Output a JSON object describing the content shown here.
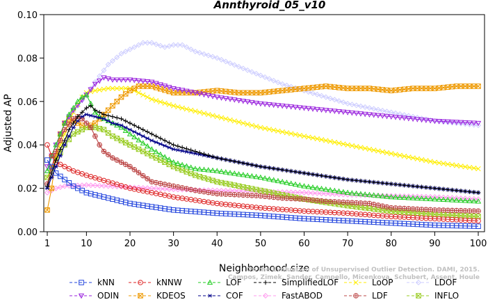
{
  "chart_data": {
    "type": "line",
    "title": "Annthyroid_05_v10",
    "xlabel": "Neighborhood size",
    "ylabel": "Adjusted AP",
    "xlim": [
      1,
      100
    ],
    "ylim": [
      0,
      0.1
    ],
    "x_ticks": [
      1,
      10,
      20,
      30,
      40,
      50,
      60,
      70,
      80,
      90,
      100
    ],
    "y_ticks": [
      0.0,
      0.02,
      0.04,
      0.06,
      0.08,
      0.1
    ],
    "y_tick_labels": [
      "0.00",
      "0.02",
      "0.04",
      "0.06",
      "0.08",
      "0.10"
    ],
    "grid": false,
    "legend_position": "bottom",
    "watermark": [
      "Campos, Zimek, Sander, Campello, Micenkova, Schubert, Assent, Houle",
      "On the Evaluation of Unsupervised Outlier Detection. DAMI, 2015."
    ],
    "series": [
      {
        "name": "kNN",
        "color": "#2244dd",
        "marker": "square",
        "points": [
          [
            1,
            0.033
          ],
          [
            2,
            0.03
          ],
          [
            3,
            0.027
          ],
          [
            5,
            0.024
          ],
          [
            7,
            0.021
          ],
          [
            10,
            0.018
          ],
          [
            15,
            0.0155
          ],
          [
            20,
            0.013
          ],
          [
            30,
            0.01
          ],
          [
            40,
            0.0085
          ],
          [
            50,
            0.0075
          ],
          [
            60,
            0.006
          ],
          [
            70,
            0.005
          ],
          [
            80,
            0.004
          ],
          [
            90,
            0.003
          ],
          [
            100,
            0.0025
          ]
        ]
      },
      {
        "name": "kNNW",
        "color": "#dd2222",
        "marker": "circle",
        "points": [
          [
            1,
            0.04
          ],
          [
            2,
            0.035
          ],
          [
            3,
            0.032
          ],
          [
            5,
            0.03
          ],
          [
            7,
            0.028
          ],
          [
            10,
            0.026
          ],
          [
            15,
            0.023
          ],
          [
            20,
            0.02
          ],
          [
            30,
            0.016
          ],
          [
            40,
            0.013
          ],
          [
            50,
            0.011
          ],
          [
            60,
            0.0095
          ],
          [
            70,
            0.0085
          ],
          [
            80,
            0.007
          ],
          [
            90,
            0.006
          ],
          [
            100,
            0.005
          ]
        ]
      },
      {
        "name": "LOF",
        "color": "#22cc22",
        "marker": "triangle-up",
        "points": [
          [
            1,
            0.028
          ],
          [
            2,
            0.035
          ],
          [
            3,
            0.04
          ],
          [
            4,
            0.045
          ],
          [
            5,
            0.05
          ],
          [
            6,
            0.054
          ],
          [
            7,
            0.057
          ],
          [
            8,
            0.06
          ],
          [
            9,
            0.062
          ],
          [
            10,
            0.063
          ],
          [
            11,
            0.059
          ],
          [
            12,
            0.055
          ],
          [
            13,
            0.053
          ],
          [
            15,
            0.051
          ],
          [
            18,
            0.048
          ],
          [
            20,
            0.045
          ],
          [
            25,
            0.038
          ],
          [
            30,
            0.032
          ],
          [
            35,
            0.029
          ],
          [
            40,
            0.028
          ],
          [
            50,
            0.025
          ],
          [
            60,
            0.021
          ],
          [
            70,
            0.018
          ],
          [
            80,
            0.016
          ],
          [
            90,
            0.015
          ],
          [
            100,
            0.014
          ]
        ]
      },
      {
        "name": "SimplifiedLOF",
        "color": "#000000",
        "marker": "plus",
        "points": [
          [
            1,
            0.021
          ],
          [
            2,
            0.027
          ],
          [
            3,
            0.033
          ],
          [
            4,
            0.038
          ],
          [
            5,
            0.042
          ],
          [
            6,
            0.047
          ],
          [
            7,
            0.05
          ],
          [
            8,
            0.053
          ],
          [
            9,
            0.055
          ],
          [
            10,
            0.057
          ],
          [
            11,
            0.058
          ],
          [
            12,
            0.056
          ],
          [
            14,
            0.054
          ],
          [
            16,
            0.053
          ],
          [
            18,
            0.052
          ],
          [
            20,
            0.05
          ],
          [
            25,
            0.045
          ],
          [
            30,
            0.04
          ],
          [
            35,
            0.037
          ],
          [
            40,
            0.034
          ],
          [
            50,
            0.03
          ],
          [
            60,
            0.027
          ],
          [
            70,
            0.024
          ],
          [
            80,
            0.022
          ],
          [
            90,
            0.02
          ],
          [
            100,
            0.018
          ]
        ]
      },
      {
        "name": "LoOP",
        "color": "#ffee00",
        "marker": "x",
        "points": [
          [
            1,
            0.025
          ],
          [
            3,
            0.035
          ],
          [
            5,
            0.045
          ],
          [
            7,
            0.055
          ],
          [
            9,
            0.062
          ],
          [
            10,
            0.064
          ],
          [
            12,
            0.065
          ],
          [
            15,
            0.066
          ],
          [
            20,
            0.066
          ],
          [
            25,
            0.061
          ],
          [
            30,
            0.058
          ],
          [
            40,
            0.053
          ],
          [
            50,
            0.048
          ],
          [
            60,
            0.044
          ],
          [
            70,
            0.04
          ],
          [
            80,
            0.036
          ],
          [
            90,
            0.032
          ],
          [
            100,
            0.029
          ]
        ]
      },
      {
        "name": "LDOF",
        "color": "#ccccff",
        "marker": "diamond",
        "points": [
          [
            1,
            0.028
          ],
          [
            3,
            0.04
          ],
          [
            5,
            0.05
          ],
          [
            8,
            0.058
          ],
          [
            10,
            0.063
          ],
          [
            12,
            0.069
          ],
          [
            15,
            0.077
          ],
          [
            18,
            0.082
          ],
          [
            20,
            0.084
          ],
          [
            23,
            0.087
          ],
          [
            25,
            0.087
          ],
          [
            28,
            0.085
          ],
          [
            30,
            0.086
          ],
          [
            32,
            0.086
          ],
          [
            35,
            0.083
          ],
          [
            40,
            0.08
          ],
          [
            45,
            0.076
          ],
          [
            50,
            0.072
          ],
          [
            55,
            0.068
          ],
          [
            60,
            0.065
          ],
          [
            65,
            0.062
          ],
          [
            70,
            0.059
          ],
          [
            75,
            0.057
          ],
          [
            80,
            0.055
          ],
          [
            85,
            0.053
          ],
          [
            90,
            0.051
          ],
          [
            95,
            0.05
          ],
          [
            100,
            0.049
          ]
        ]
      },
      {
        "name": "ODIN",
        "color": "#9922dd",
        "marker": "triangle-down",
        "points": [
          [
            1,
            0.03
          ],
          [
            3,
            0.04
          ],
          [
            5,
            0.05
          ],
          [
            7,
            0.056
          ],
          [
            10,
            0.063
          ],
          [
            12,
            0.068
          ],
          [
            14,
            0.071
          ],
          [
            16,
            0.07
          ],
          [
            20,
            0.07
          ],
          [
            25,
            0.069
          ],
          [
            30,
            0.066
          ],
          [
            40,
            0.062
          ],
          [
            50,
            0.059
          ],
          [
            60,
            0.057
          ],
          [
            70,
            0.055
          ],
          [
            80,
            0.053
          ],
          [
            90,
            0.051
          ],
          [
            100,
            0.05
          ]
        ]
      },
      {
        "name": "KDEOS",
        "color": "#ee9900",
        "marker": "square-x",
        "points": [
          [
            1,
            0.01
          ],
          [
            2,
            0.02
          ],
          [
            3,
            0.035
          ],
          [
            4,
            0.045
          ],
          [
            5,
            0.05
          ],
          [
            6,
            0.052
          ],
          [
            8,
            0.05
          ],
          [
            10,
            0.048
          ],
          [
            12,
            0.05
          ],
          [
            14,
            0.054
          ],
          [
            16,
            0.058
          ],
          [
            18,
            0.062
          ],
          [
            20,
            0.065
          ],
          [
            22,
            0.067
          ],
          [
            25,
            0.067
          ],
          [
            30,
            0.064
          ],
          [
            35,
            0.064
          ],
          [
            40,
            0.065
          ],
          [
            45,
            0.064
          ],
          [
            50,
            0.064
          ],
          [
            55,
            0.065
          ],
          [
            60,
            0.066
          ],
          [
            65,
            0.067
          ],
          [
            70,
            0.066
          ],
          [
            75,
            0.066
          ],
          [
            80,
            0.065
          ],
          [
            85,
            0.066
          ],
          [
            90,
            0.066
          ],
          [
            95,
            0.067
          ],
          [
            100,
            0.067
          ]
        ]
      },
      {
        "name": "COF",
        "color": "#000088",
        "marker": "asterisk",
        "points": [
          [
            1,
            0.02
          ],
          [
            2,
            0.025
          ],
          [
            3,
            0.03
          ],
          [
            4,
            0.035
          ],
          [
            5,
            0.04
          ],
          [
            6,
            0.044
          ],
          [
            7,
            0.048
          ],
          [
            8,
            0.051
          ],
          [
            9,
            0.053
          ],
          [
            10,
            0.054
          ],
          [
            12,
            0.053
          ],
          [
            14,
            0.052
          ],
          [
            16,
            0.05
          ],
          [
            18,
            0.049
          ],
          [
            20,
            0.047
          ],
          [
            25,
            0.042
          ],
          [
            30,
            0.038
          ],
          [
            35,
            0.036
          ],
          [
            40,
            0.034
          ],
          [
            50,
            0.03
          ],
          [
            60,
            0.027
          ],
          [
            70,
            0.024
          ],
          [
            80,
            0.022
          ],
          [
            90,
            0.02
          ],
          [
            100,
            0.018
          ]
        ]
      },
      {
        "name": "FastABOD",
        "color": "#ff99ee",
        "marker": "diamond",
        "points": [
          [
            1,
            0.018
          ],
          [
            3,
            0.02
          ],
          [
            5,
            0.021
          ],
          [
            10,
            0.0215
          ],
          [
            15,
            0.021
          ],
          [
            20,
            0.0205
          ],
          [
            30,
            0.0195
          ],
          [
            40,
            0.019
          ],
          [
            50,
            0.0185
          ],
          [
            60,
            0.018
          ],
          [
            70,
            0.017
          ],
          [
            80,
            0.0165
          ],
          [
            90,
            0.016
          ],
          [
            100,
            0.015
          ]
        ]
      },
      {
        "name": "LDF",
        "color": "#bb4444",
        "marker": "circle-plus",
        "points": [
          [
            1,
            0.022
          ],
          [
            3,
            0.037
          ],
          [
            5,
            0.047
          ],
          [
            7,
            0.052
          ],
          [
            8,
            0.053
          ],
          [
            9,
            0.052
          ],
          [
            10,
            0.05
          ],
          [
            11,
            0.048
          ],
          [
            12,
            0.044
          ],
          [
            13,
            0.04
          ],
          [
            14,
            0.037
          ],
          [
            16,
            0.034
          ],
          [
            18,
            0.032
          ],
          [
            20,
            0.03
          ],
          [
            25,
            0.023
          ],
          [
            30,
            0.021
          ],
          [
            35,
            0.019
          ],
          [
            40,
            0.0175
          ],
          [
            45,
            0.017
          ],
          [
            50,
            0.0165
          ],
          [
            55,
            0.0155
          ],
          [
            60,
            0.015
          ],
          [
            65,
            0.014
          ],
          [
            70,
            0.0135
          ],
          [
            75,
            0.013
          ],
          [
            80,
            0.011
          ],
          [
            90,
            0.01
          ],
          [
            100,
            0.0095
          ]
        ]
      },
      {
        "name": "INFLO",
        "color": "#99cc22",
        "marker": "square-x",
        "points": [
          [
            1,
            0.025
          ],
          [
            3,
            0.033
          ],
          [
            5,
            0.04
          ],
          [
            7,
            0.045
          ],
          [
            9,
            0.047
          ],
          [
            10,
            0.048
          ],
          [
            12,
            0.048
          ],
          [
            14,
            0.047
          ],
          [
            16,
            0.044
          ],
          [
            18,
            0.042
          ],
          [
            20,
            0.04
          ],
          [
            25,
            0.035
          ],
          [
            30,
            0.03
          ],
          [
            35,
            0.026
          ],
          [
            40,
            0.023
          ],
          [
            50,
            0.019
          ],
          [
            60,
            0.015
          ],
          [
            70,
            0.012
          ],
          [
            80,
            0.0095
          ],
          [
            90,
            0.008
          ],
          [
            100,
            0.007
          ]
        ]
      }
    ]
  }
}
